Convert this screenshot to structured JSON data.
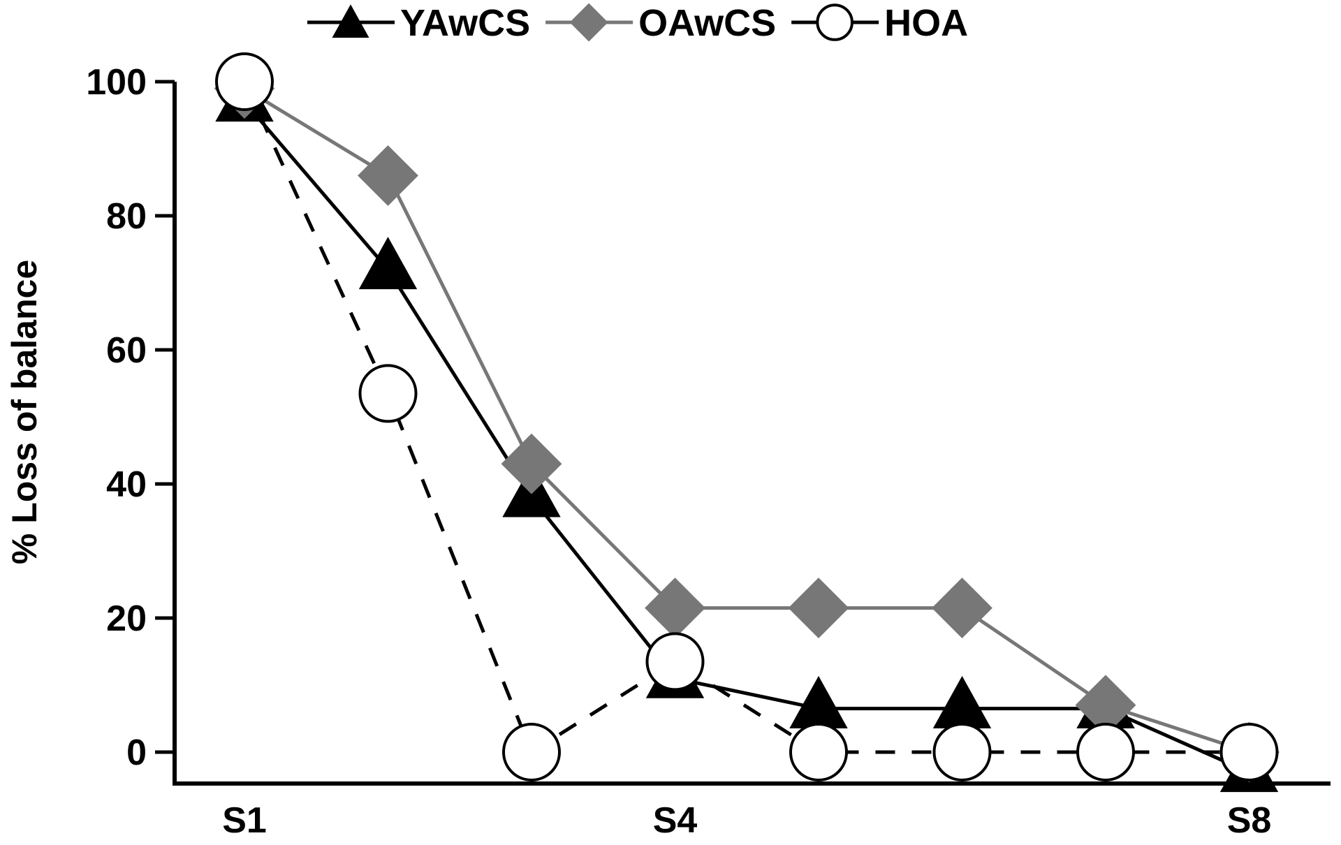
{
  "chart_data": {
    "type": "line",
    "ylabel": "% Loss of balance",
    "xlabel": "",
    "ylim": [
      0,
      100
    ],
    "yticks": [
      0,
      20,
      40,
      60,
      80,
      100
    ],
    "x_positions": [
      1,
      2,
      3,
      4,
      5,
      6,
      7,
      8
    ],
    "xtick_labels": [
      {
        "x": 1,
        "label": "S1"
      },
      {
        "x": 4,
        "label": "S4"
      },
      {
        "x": 8,
        "label": "S8"
      }
    ],
    "legend_position": "top",
    "series": [
      {
        "name": "YAwCS",
        "color": "#000000",
        "line": "solid",
        "marker": "triangle",
        "values": [
          97,
          72,
          38,
          11,
          6.5,
          6.5,
          6.5,
          -3
        ]
      },
      {
        "name": "OAwCS",
        "color": "#777777",
        "line": "solid",
        "marker": "diamond",
        "values": [
          99,
          86,
          43,
          21.5,
          21.5,
          21.5,
          7,
          0
        ]
      },
      {
        "name": "HOA",
        "color": "#000000",
        "line": "dashed",
        "marker": "circle",
        "values": [
          100,
          53.5,
          0,
          13.5,
          0,
          0,
          0,
          0
        ]
      }
    ]
  }
}
